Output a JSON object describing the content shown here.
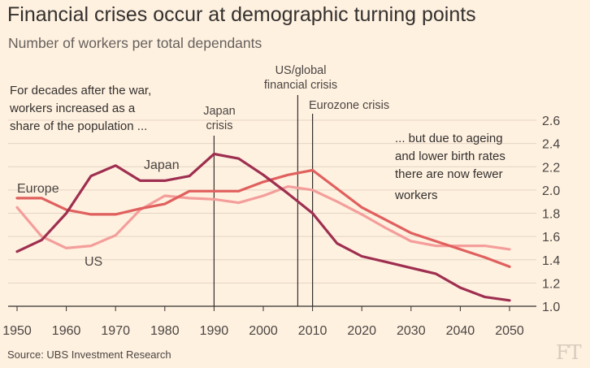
{
  "title": "Financial crises occur at demographic turning points",
  "subtitle": "Number of workers per total dependants",
  "source": "Source: UBS Investment Research",
  "logo": "FT",
  "chart_data": {
    "type": "line",
    "x": [
      1950,
      1955,
      1960,
      1965,
      1970,
      1975,
      1980,
      1985,
      1990,
      1995,
      2000,
      2005,
      2010,
      2015,
      2020,
      2025,
      2030,
      2035,
      2040,
      2045,
      2050
    ],
    "series": [
      {
        "name": "Japan",
        "color": "#9e2f50",
        "values": [
          1.47,
          1.57,
          1.8,
          2.12,
          2.21,
          2.08,
          2.08,
          2.12,
          2.31,
          2.27,
          2.13,
          1.97,
          1.8,
          1.54,
          1.43,
          1.38,
          1.33,
          1.28,
          1.16,
          1.08,
          1.05
        ]
      },
      {
        "name": "Europe",
        "color": "#e0605e",
        "values": [
          1.93,
          1.93,
          1.83,
          1.79,
          1.79,
          1.84,
          1.88,
          1.99,
          1.99,
          1.99,
          2.07,
          2.13,
          2.17,
          2.01,
          1.85,
          1.74,
          1.63,
          1.56,
          1.49,
          1.42,
          1.34
        ]
      },
      {
        "name": "US",
        "color": "#f49e9b",
        "values": [
          1.85,
          1.6,
          1.5,
          1.52,
          1.61,
          1.83,
          1.95,
          1.93,
          1.92,
          1.89,
          1.95,
          2.03,
          2.0,
          1.9,
          1.79,
          1.67,
          1.56,
          1.52,
          1.52,
          1.52,
          1.49
        ]
      }
    ],
    "xlim": [
      1950,
      2053
    ],
    "ylim": [
      1.0,
      2.6
    ],
    "xticks": [
      "1950",
      "1960",
      "1970",
      "1980",
      "1990",
      "2000",
      "2010",
      "2020",
      "2030",
      "2040",
      "2050"
    ],
    "yticks": [
      "1.0",
      "1.2",
      "1.4",
      "1.6",
      "1.8",
      "2.0",
      "2.2",
      "2.4",
      "2.6"
    ],
    "yaxis_position": "right",
    "grid": true,
    "event_lines": [
      {
        "x": 1990,
        "label": "Japan crisis",
        "lines": [
          "Japan",
          "crisis"
        ]
      },
      {
        "x": 2007,
        "label": "US/global financial crisis",
        "lines": [
          "US/global",
          "financial crisis"
        ]
      },
      {
        "x": 2010,
        "label": "Eurozone crisis",
        "lines": [
          "Eurozone crisis"
        ]
      }
    ],
    "series_labels": {
      "japan": "Japan",
      "europe": "Europe",
      "us": "US"
    },
    "annotations": [
      {
        "name": "left",
        "lines": [
          "For decades after the war,",
          "workers increased as a",
          "share of the population ..."
        ]
      },
      {
        "name": "right",
        "lines": [
          "... but due to ageing",
          "and lower birth rates",
          "there are now fewer",
          "workers"
        ]
      }
    ]
  }
}
